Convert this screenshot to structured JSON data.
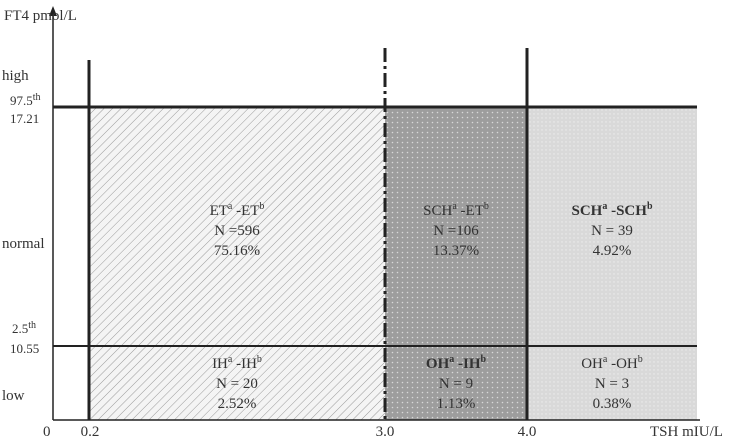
{
  "axes": {
    "y_label": "FT4 pmol/L",
    "x_label": "TSH mIU/L",
    "origin": "0",
    "x_ticks": [
      "0.2",
      "3.0",
      "4.0"
    ],
    "y_levels": [
      "high",
      "normal",
      "low"
    ],
    "upper_limit": {
      "parts": [
        "97.5",
        "th"
      ],
      "value": "17.21"
    },
    "lower_limit": {
      "parts": [
        "2.5",
        "th"
      ],
      "value": "10.55"
    }
  },
  "regions": [
    {
      "parts": [
        "ET",
        "a",
        " -ET",
        "b"
      ],
      "count": "N =596",
      "percent": "75.16%",
      "bold": false
    },
    {
      "parts": [
        "SCH",
        "a",
        " -ET",
        "b"
      ],
      "count": "N =106",
      "percent": "13.37%",
      "bold": false
    },
    {
      "parts": [
        "SCH",
        "a",
        " -SCH",
        "b"
      ],
      "count": "N = 39",
      "percent": "4.92%",
      "bold": true
    },
    {
      "parts": [
        "IH",
        "a",
        " -IH",
        "b"
      ],
      "count": "N = 20",
      "percent": "2.52%",
      "bold": false
    },
    {
      "parts": [
        "OH",
        "a",
        " -IH",
        "b"
      ],
      "count": "N = 9",
      "percent": "1.13%",
      "bold": true
    },
    {
      "parts": [
        "OH",
        "a",
        " -OH",
        "b"
      ],
      "count": "N = 3",
      "percent": "0.38%",
      "bold": false
    }
  ]
}
